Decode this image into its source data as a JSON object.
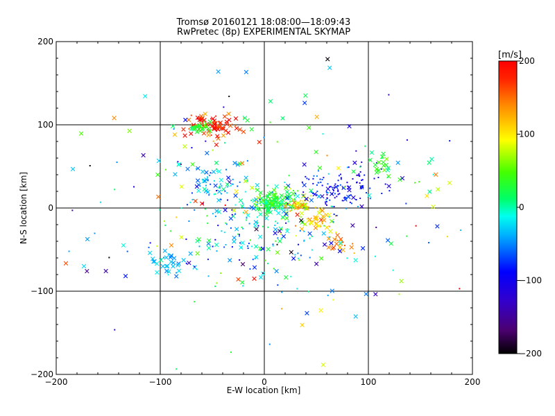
{
  "title_line1": "Tromsø 20160121 18:08:00—18:09:43",
  "title_line2": "RwPretec (8p) EXPERIMENTAL SKYMAP",
  "chart_data": {
    "type": "scatter",
    "xlabel": "E-W location [km]",
    "ylabel": "N-S location [km]",
    "xlim": [
      -200,
      200
    ],
    "ylim": [
      -200,
      200
    ],
    "xticks": [
      -200,
      -100,
      0,
      100,
      200
    ],
    "yticks": [
      -200,
      -100,
      0,
      100,
      200
    ],
    "xtick_labels": [
      "−200",
      "−100",
      "0",
      "100",
      "200"
    ],
    "ytick_labels": [
      "−200",
      "−100",
      "0",
      "100",
      "200"
    ],
    "grid": true,
    "grid_lines_at": [
      -100,
      0,
      100
    ],
    "colorbar": {
      "label": "[m/s]",
      "range": [
        -200,
        200
      ],
      "ticks": [
        200,
        100,
        0,
        -100,
        -200
      ],
      "tick_labels": [
        "200",
        "100",
        "0",
        "−100",
        "−200"
      ],
      "colormap": "rainbow (black → purple → blue → cyan → green → yellow → orange → red)"
    },
    "markers": [
      "x",
      "dot"
    ],
    "clusters": [
      {
        "cx": -50,
        "cy": 100,
        "sx": 14,
        "sy": 8,
        "v": 180,
        "sv": 25,
        "n": 75,
        "cross": 0.8
      },
      {
        "cx": -62,
        "cy": 97,
        "sx": 6,
        "sy": 4,
        "v": 30,
        "sv": 12,
        "n": 26,
        "cross": 0.7
      },
      {
        "cx": 10,
        "cy": 5,
        "sx": 12,
        "sy": 8,
        "v": 20,
        "sv": 25,
        "n": 150,
        "cross": 0.55
      },
      {
        "cx": 33,
        "cy": 5,
        "sx": 6,
        "sy": 5,
        "v": 110,
        "sv": 20,
        "n": 30,
        "cross": 0.6
      },
      {
        "cx": 65,
        "cy": 18,
        "sx": 16,
        "sy": 11,
        "v": -90,
        "sv": 22,
        "n": 95,
        "cross": 0.15
      },
      {
        "cx": 95,
        "cy": 35,
        "sx": 12,
        "sy": 12,
        "v": -110,
        "sv": 20,
        "n": 35,
        "cross": 0.1
      },
      {
        "cx": 50,
        "cy": -15,
        "sx": 10,
        "sy": 7,
        "v": 120,
        "sv": 25,
        "n": 40,
        "cross": 0.7
      },
      {
        "cx": 72,
        "cy": -45,
        "sx": 6,
        "sy": 7,
        "v": 140,
        "sv": 15,
        "n": 20,
        "cross": 0.7
      },
      {
        "cx": 115,
        "cy": 50,
        "sx": 7,
        "sy": 9,
        "v": 35,
        "sv": 15,
        "n": 20,
        "cross": 0.8
      },
      {
        "cx": -92,
        "cy": -65,
        "sx": 10,
        "sy": 9,
        "v": -35,
        "sv": 15,
        "n": 35,
        "cross": 0.75
      },
      {
        "cx": -45,
        "cy": 30,
        "sx": 22,
        "sy": 15,
        "v": -30,
        "sv": 30,
        "n": 70,
        "cross": 0.4
      },
      {
        "cx": -30,
        "cy": -30,
        "sx": 28,
        "sy": 22,
        "v": -35,
        "sv": 40,
        "n": 80,
        "cross": 0.4
      },
      {
        "cx": 10,
        "cy": -45,
        "sx": 28,
        "sy": 25,
        "v": -25,
        "sv": 40,
        "n": 50,
        "cross": 0.35
      },
      {
        "cx": 0,
        "cy": 0,
        "sx": 95,
        "sy": 75,
        "v": 0,
        "sv": 95,
        "n": 230,
        "cross": 0.5
      }
    ]
  }
}
